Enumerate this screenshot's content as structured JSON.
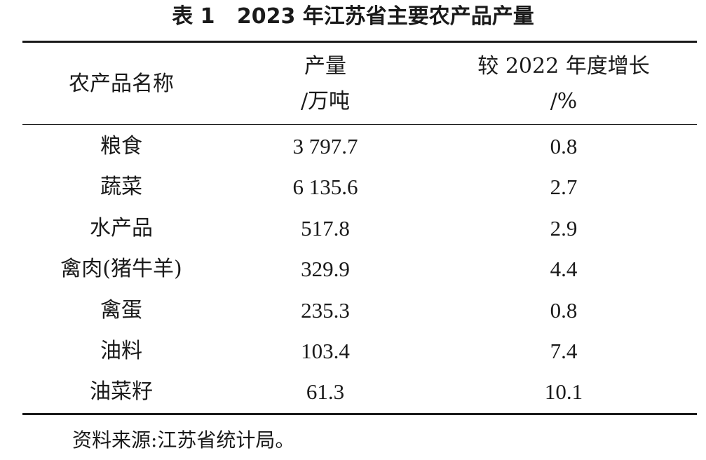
{
  "table": {
    "caption": "表 1   2023 年江苏省主要农产品产量",
    "headers": {
      "name": [
        "农产品名称"
      ],
      "quantity": [
        "产量",
        "/万吨"
      ],
      "growth": [
        "较 2022 年度增长",
        "/%"
      ]
    },
    "rows": [
      {
        "name": "粮食",
        "quantity": "3 797.7",
        "growth": "0.8"
      },
      {
        "name": "蔬菜",
        "quantity": "6 135.6",
        "growth": "2.7"
      },
      {
        "name": "水产品",
        "quantity": "517.8",
        "growth": "2.9"
      },
      {
        "name": "禽肉(猪牛羊)",
        "quantity": "329.9",
        "growth": "4.4"
      },
      {
        "name": "禽蛋",
        "quantity": "235.3",
        "growth": "0.8"
      },
      {
        "name": "油料",
        "quantity": "103.4",
        "growth": "7.4"
      },
      {
        "name": "油菜籽",
        "quantity": "61.3",
        "growth": "10.1"
      }
    ],
    "source": "资料来源:江苏省统计局。"
  }
}
